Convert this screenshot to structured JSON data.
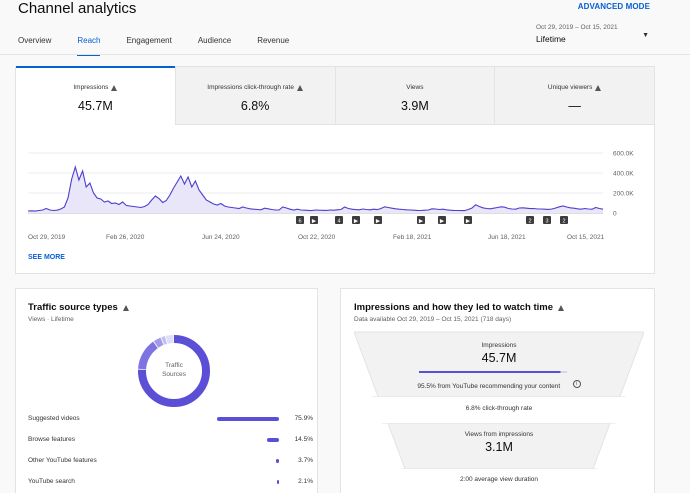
{
  "header": {
    "title": "Channel analytics",
    "advanced_mode": "ADVANCED MODE",
    "tabs": [
      {
        "label": "Overview"
      },
      {
        "label": "Reach"
      },
      {
        "label": "Engagement"
      },
      {
        "label": "Audience"
      },
      {
        "label": "Revenue"
      }
    ],
    "active_tab": "Reach",
    "date_range": "Oct 29, 2019 – Oct 15, 2021",
    "period": "Lifetime"
  },
  "metrics": [
    {
      "label": "Impressions",
      "value": "45.7M",
      "warning": true
    },
    {
      "label": "Impressions click-through rate",
      "value": "6.8%",
      "warning": true
    },
    {
      "label": "Views",
      "value": "3.9M",
      "warning": false
    },
    {
      "label": "Unique viewers",
      "value": "—",
      "warning": true
    }
  ],
  "chart_data": {
    "type": "area",
    "x_tick_labels": [
      "Oct 29, 2019",
      "Feb 26, 2020",
      "Jun 24, 2020",
      "Oct 22, 2020",
      "Feb 18, 2021",
      "Jun 18, 2021",
      "Oct 15, 2021"
    ],
    "y_tick_labels": [
      "600.0K",
      "400.0K",
      "200.0K",
      "0"
    ],
    "ylim": [
      0,
      600000
    ],
    "series": [
      {
        "values": [
          20000,
          22000,
          19000,
          25000,
          30000,
          45000,
          30000,
          25000,
          28000,
          40000,
          60000,
          150000,
          340000,
          460000,
          330000,
          420000,
          260000,
          300000,
          200000,
          150000,
          140000,
          110000,
          120000,
          95000,
          100000,
          85000,
          110000,
          75000,
          70000,
          65000,
          60000,
          55000,
          65000,
          85000,
          130000,
          170000,
          145000,
          105000,
          125000,
          180000,
          250000,
          310000,
          370000,
          290000,
          360000,
          260000,
          320000,
          230000,
          180000,
          130000,
          110000,
          90000,
          80000,
          95000,
          70000,
          60000,
          55000,
          50000,
          45000,
          60000,
          50000,
          42000,
          38000,
          35000,
          32000,
          48000,
          42000,
          35000,
          30000,
          30000,
          60000,
          50000,
          38000,
          30000,
          38000,
          30000,
          28000,
          26000,
          24000,
          30000,
          28000,
          27000,
          26000,
          30000,
          28000,
          32000,
          35000,
          60000,
          45000,
          38000,
          34000,
          32000,
          40000,
          35000,
          32000,
          38000,
          34000,
          45000,
          62000,
          55000,
          48000,
          42000,
          38000,
          35000,
          32000,
          30000,
          28000,
          26000,
          25000,
          28000,
          30000,
          42000,
          40000,
          35000,
          38000,
          32000,
          28000,
          26000,
          25000,
          24000,
          24000,
          35000,
          50000,
          82000,
          65000,
          52000,
          45000,
          42000,
          48000,
          55000,
          62000,
          58000,
          45000,
          40000,
          38000,
          50000,
          52000,
          48000,
          44000,
          45000,
          40000,
          40000,
          38000,
          36000,
          40000,
          50000,
          62000,
          70000,
          60000,
          52000,
          48000,
          42000,
          38000,
          45000,
          40000,
          38000,
          55000,
          45000,
          38000
        ]
      }
    ],
    "annotation_markers": [
      "6",
      "▶",
      "4",
      "▶",
      "▶",
      "▶",
      "▶",
      "▶",
      "2",
      "3",
      "2"
    ],
    "grid": true,
    "legend": "none"
  },
  "see_more": "SEE MORE",
  "traffic": {
    "title": "Traffic source types",
    "subtitle": "Views · Lifetime",
    "donut_label_1": "Traffic",
    "donut_label_2": "Sources",
    "rows": [
      {
        "name": "Suggested videos",
        "pct": "75.9%",
        "value": 75.9
      },
      {
        "name": "Browse features",
        "pct": "14.5%",
        "value": 14.5
      },
      {
        "name": "Other YouTube features",
        "pct": "3.7%",
        "value": 3.7
      },
      {
        "name": "YouTube search",
        "pct": "2.1%",
        "value": 2.1
      }
    ],
    "colors": [
      "#5b4fd6",
      "#7e74e0",
      "#a29ae9",
      "#c4bff2",
      "#e0ddf8"
    ]
  },
  "funnel": {
    "title": "Impressions and how they led to watch time",
    "subtitle": "Data available Oct 29, 2019 – Oct 15, 2021 (718 days)",
    "impressions_label": "Impressions",
    "impressions_value": "45.7M",
    "recommend_text": "95.5% from YouTube recommending your content",
    "recommend_value": 95.5,
    "ctr_text": "6.8% click-through rate",
    "views_label": "Views from impressions",
    "views_value": "3.1M",
    "avd_text": "2:00 average view duration"
  }
}
